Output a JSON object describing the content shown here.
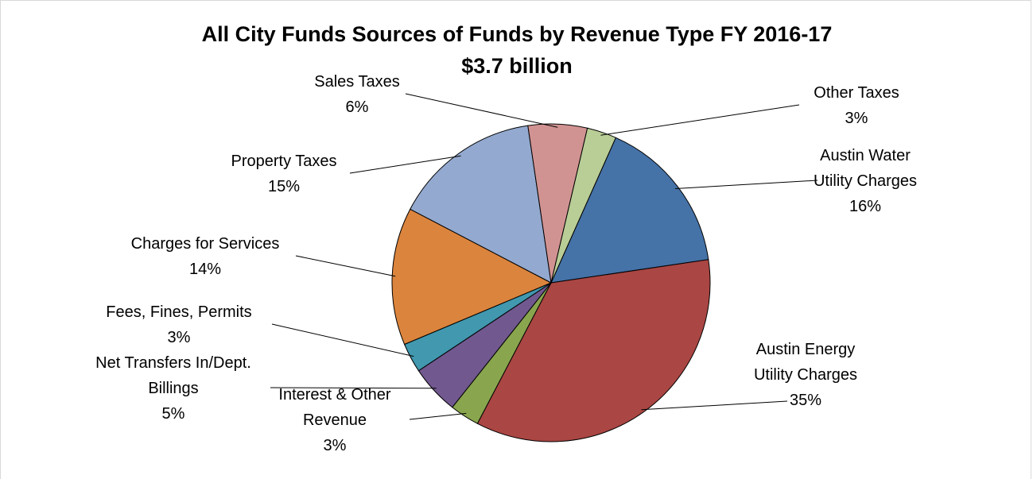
{
  "chart_data": {
    "type": "pie",
    "title": "All City Funds Sources of Funds by Revenue Type FY 2016-17",
    "subtitle": "$3.7 billion",
    "slices": [
      {
        "name": "Austin Water Utility Charges",
        "lines": [
          "Austin Water",
          "Utility Charges"
        ],
        "value": 16,
        "label": "16%",
        "color": "#4572A7"
      },
      {
        "name": "Austin Energy Utility Charges",
        "lines": [
          "Austin Energy",
          "Utility Charges"
        ],
        "value": 35,
        "label": "35%",
        "color": "#AA4643"
      },
      {
        "name": "Interest & Other Revenue",
        "lines": [
          "Interest & Other",
          "Revenue"
        ],
        "value": 3,
        "label": "3%",
        "color": "#89A54E"
      },
      {
        "name": "Net Transfers In/Dept. Billings",
        "lines": [
          "Net Transfers In/Dept.",
          "Billings"
        ],
        "value": 5,
        "label": "5%",
        "color": "#71588F"
      },
      {
        "name": "Fees, Fines, Permits",
        "lines": [
          "Fees, Fines, Permits"
        ],
        "value": 3,
        "label": "3%",
        "color": "#4198AF"
      },
      {
        "name": "Charges for Services",
        "lines": [
          "Charges for Services"
        ],
        "value": 14,
        "label": "14%",
        "color": "#DB843D"
      },
      {
        "name": "Property Taxes",
        "lines": [
          "Property Taxes"
        ],
        "value": 15,
        "label": "15%",
        "color": "#93A9CF"
      },
      {
        "name": "Sales Taxes",
        "lines": [
          "Sales Taxes"
        ],
        "value": 6,
        "label": "6%",
        "color": "#D19392"
      },
      {
        "name": "Other Taxes",
        "lines": [
          "Other Taxes"
        ],
        "value": 3,
        "label": "3%",
        "color": "#B9CD96"
      }
    ]
  }
}
